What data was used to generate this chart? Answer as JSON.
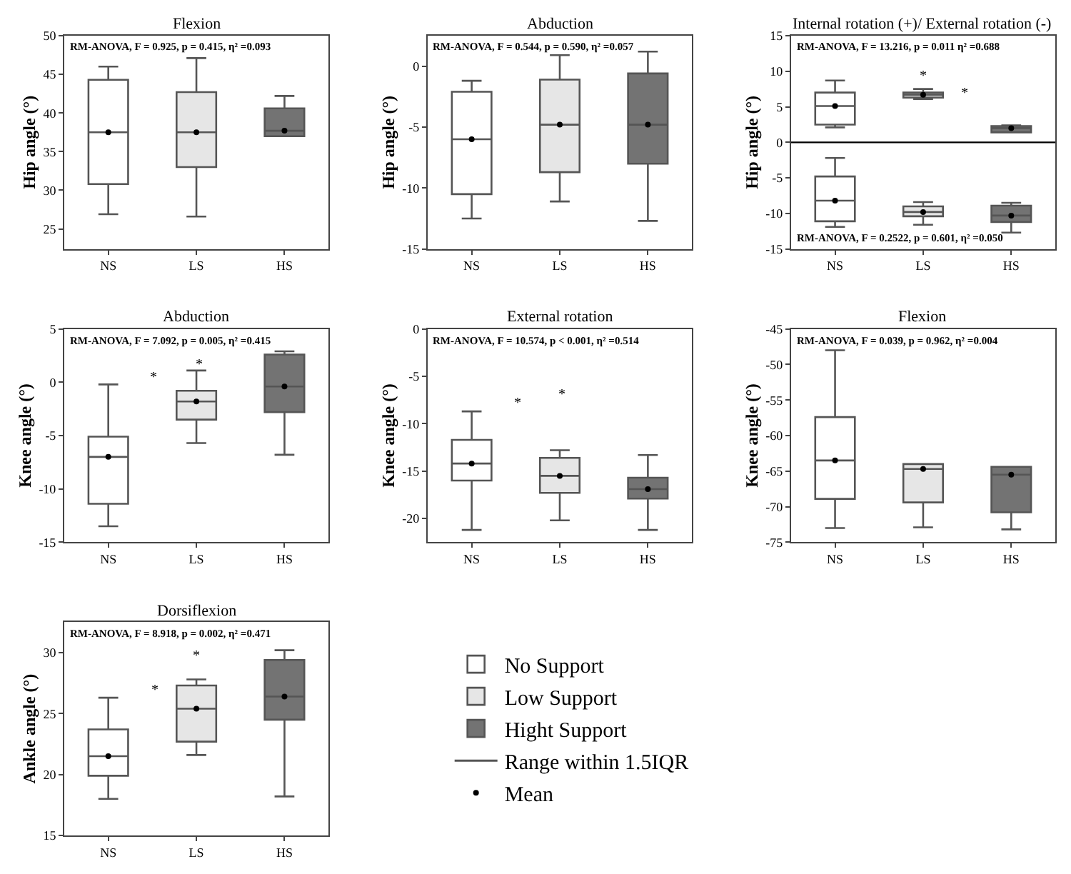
{
  "chart_data": [
    {
      "type": "box",
      "title": "Flexion",
      "ylabel": "Hip angle (°)",
      "categories": [
        "NS",
        "LS",
        "HS"
      ],
      "ylim": [
        22.4,
        50
      ],
      "yticks": [
        25,
        30,
        35,
        40,
        45,
        50
      ],
      "annotations": [
        "RM-ANOVA, F = 0.925, p = 0.415, η² =0.093"
      ],
      "series": [
        {
          "color": "#ffffff",
          "boxes": [
            {
              "low": 26.9,
              "q1": 30.8,
              "median": 37.5,
              "q3": 44.3,
              "high": 46
            },
            null,
            null
          ]
        },
        {
          "color": "#e6e6e6",
          "boxes": [
            null,
            {
              "low": 26.6,
              "q1": 33,
              "median": 37.5,
              "q3": 42.7,
              "high": 47.1
            },
            null
          ]
        },
        {
          "color": "#737373",
          "boxes": [
            null,
            null,
            {
              "low": 37,
              "q1": 37,
              "median": 37.7,
              "q3": 40.6,
              "high": 42.2
            }
          ]
        },
        {
          "type": "scatter",
          "color": "#000000",
          "marker": "circle",
          "x": [
            "NS",
            "LS",
            "HS"
          ],
          "values": [
            37.5,
            37.5,
            37.7
          ]
        }
      ]
    },
    {
      "type": "box",
      "title": "Abduction",
      "ylabel": "Hip angle (°)",
      "categories": [
        "NS",
        "LS",
        "HS"
      ],
      "ylim": [
        -15,
        2.5
      ],
      "yticks": [
        -15,
        -10,
        -5,
        0
      ],
      "annotations": [
        "RM-ANOVA, F = 0.544, p = 0.590, η² =0.057"
      ],
      "series": [
        {
          "color": "#ffffff",
          "boxes": [
            {
              "low": -12.5,
              "q1": -10.5,
              "median": -6,
              "q3": -2.1,
              "high": -1.2
            },
            null,
            null
          ]
        },
        {
          "color": "#e6e6e6",
          "boxes": [
            null,
            {
              "low": -11.1,
              "q1": -8.7,
              "median": -4.8,
              "q3": -1.1,
              "high": 0.9
            },
            null
          ]
        },
        {
          "color": "#737373",
          "boxes": [
            null,
            null,
            {
              "low": -12.7,
              "q1": -8,
              "median": -4.8,
              "q3": -0.6,
              "high": 1.2
            }
          ]
        },
        {
          "type": "scatter",
          "color": "#000000",
          "marker": "circle",
          "x": [
            "NS",
            "LS",
            "HS"
          ],
          "values": [
            -6,
            -4.8,
            -4.8
          ]
        }
      ]
    },
    {
      "type": "box",
      "title": "Internal rotation (+)/ External rotation (-)",
      "ylabel": "Hip angle (°)",
      "categories": [
        "NS",
        "LS",
        "HS"
      ],
      "ylim": [
        -15,
        15
      ],
      "yticks": [
        -15,
        -10,
        -5,
        0,
        5,
        10,
        15
      ],
      "ref_lines": [
        {
          "axis": "y",
          "value": 0,
          "color": "#000000"
        }
      ],
      "annotations": [
        "RM-ANOVA, F = 13.216, p = 0.011 η² =0.688",
        "RM-ANOVA, F = 0.2522, p = 0.601, η² =0.050",
        "*",
        "*"
      ],
      "series": [
        {
          "color": "#ffffff",
          "boxes": [
            {
              "low": 2.1,
              "q1": 2.5,
              "median": 5.1,
              "q3": 7,
              "high": 8.7
            },
            null,
            null
          ]
        },
        {
          "color": "#e6e6e6",
          "boxes": [
            null,
            {
              "low": 6.1,
              "q1": 6.3,
              "median": 6.7,
              "q3": 7,
              "high": 7.5
            },
            null
          ]
        },
        {
          "color": "#737373",
          "boxes": [
            null,
            null,
            {
              "low": 1.4,
              "q1": 1.4,
              "median": 2,
              "q3": 2.3,
              "high": 2.4
            }
          ]
        },
        {
          "color": "#ffffff",
          "boxes": [
            {
              "low": -11.9,
              "q1": -11.1,
              "median": -8.2,
              "q3": -4.8,
              "high": -2.2
            },
            null,
            null
          ]
        },
        {
          "color": "#e6e6e6",
          "boxes": [
            null,
            {
              "low": -11.6,
              "q1": -10.4,
              "median": -9.8,
              "q3": -9,
              "high": -8.4
            },
            null
          ]
        },
        {
          "color": "#737373",
          "boxes": [
            null,
            null,
            {
              "low": -12.7,
              "q1": -11.2,
              "median": -10.3,
              "q3": -8.9,
              "high": -8.5
            }
          ]
        },
        {
          "type": "scatter",
          "color": "#000000",
          "marker": "circle",
          "x": [
            "NS",
            "LS",
            "HS"
          ],
          "values": [
            5.1,
            6.7,
            2
          ]
        },
        {
          "type": "scatter",
          "color": "#000000",
          "marker": "circle",
          "x": [
            "NS",
            "LS",
            "HS"
          ],
          "values": [
            -8.2,
            -9.8,
            -10.3
          ]
        }
      ]
    },
    {
      "type": "box",
      "title": "Abduction",
      "ylabel": "Knee angle (°)",
      "categories": [
        "NS",
        "LS",
        "HS"
      ],
      "ylim": [
        -15,
        5
      ],
      "yticks": [
        -15,
        -10,
        -5,
        0,
        5
      ],
      "annotations": [
        "RM-ANOVA, F = 7.092, p = 0.005, η² =0.415",
        "*",
        "*"
      ],
      "series": [
        {
          "color": "#ffffff",
          "boxes": [
            {
              "low": -13.5,
              "q1": -11.4,
              "median": -7,
              "q3": -5.1,
              "high": -0.2
            },
            null,
            null
          ]
        },
        {
          "color": "#e6e6e6",
          "boxes": [
            null,
            {
              "low": -5.7,
              "q1": -3.5,
              "median": -1.8,
              "q3": -0.8,
              "high": 1.1
            },
            null
          ]
        },
        {
          "color": "#737373",
          "boxes": [
            null,
            null,
            {
              "low": -6.8,
              "q1": -2.8,
              "median": -0.4,
              "q3": 2.6,
              "high": 2.9
            }
          ]
        },
        {
          "type": "scatter",
          "color": "#000000",
          "marker": "circle",
          "x": [
            "NS",
            "LS",
            "HS"
          ],
          "values": [
            -7,
            -1.8,
            -0.4
          ]
        }
      ]
    },
    {
      "type": "box",
      "title": "External rotation",
      "ylabel": "Knee angle (°)",
      "categories": [
        "NS",
        "LS",
        "HS"
      ],
      "ylim": [
        -22.5,
        0
      ],
      "yticks": [
        -20,
        -15,
        -10,
        -5,
        0
      ],
      "annotations": [
        "RM-ANOVA, F = 10.574, p < 0.001, η² =0.514",
        "*",
        "*"
      ],
      "series": [
        {
          "color": "#ffffff",
          "boxes": [
            {
              "low": -21.2,
              "q1": -16,
              "median": -14.2,
              "q3": -11.7,
              "high": -8.7
            },
            null,
            null
          ]
        },
        {
          "color": "#e6e6e6",
          "boxes": [
            null,
            {
              "low": -20.2,
              "q1": -17.3,
              "median": -15.5,
              "q3": -13.6,
              "high": -12.8
            },
            null
          ]
        },
        {
          "color": "#737373",
          "boxes": [
            null,
            null,
            {
              "low": -21.2,
              "q1": -17.9,
              "median": -16.9,
              "q3": -15.7,
              "high": -13.3
            }
          ]
        },
        {
          "type": "scatter",
          "color": "#000000",
          "marker": "circle",
          "x": [
            "NS",
            "LS",
            "HS"
          ],
          "values": [
            -14.2,
            -15.5,
            -16.9
          ]
        }
      ]
    },
    {
      "type": "box",
      "title": "Flexion",
      "ylabel": "Knee angle (°)",
      "categories": [
        "NS",
        "LS",
        "HS"
      ],
      "ylim": [
        -75,
        -45
      ],
      "yticks": [
        -75,
        -70,
        -65,
        -60,
        -55,
        -50,
        -45
      ],
      "annotations": [
        "RM-ANOVA, F = 0.039, p = 0.962, η² =0.004"
      ],
      "series": [
        {
          "color": "#ffffff",
          "boxes": [
            {
              "low": -73,
              "q1": -68.9,
              "median": -63.5,
              "q3": -57.4,
              "high": -48
            },
            null,
            null
          ]
        },
        {
          "color": "#e6e6e6",
          "boxes": [
            null,
            {
              "low": -72.9,
              "q1": -69.4,
              "median": -64.7,
              "q3": -64,
              "high": -64
            },
            null
          ]
        },
        {
          "color": "#737373",
          "boxes": [
            null,
            null,
            {
              "low": -73.2,
              "q1": -70.8,
              "median": -65.5,
              "q3": -64.4,
              "high": -64.4
            }
          ]
        },
        {
          "type": "scatter",
          "color": "#000000",
          "marker": "circle",
          "x": [
            "NS",
            "LS",
            "HS"
          ],
          "values": [
            -63.5,
            -64.7,
            -65.5
          ]
        }
      ]
    },
    {
      "type": "box",
      "title": "Dorsiflexion",
      "ylabel": "Ankle angle (°)",
      "categories": [
        "NS",
        "LS",
        "HS"
      ],
      "ylim": [
        15,
        32.5
      ],
      "yticks": [
        15,
        20,
        25,
        30
      ],
      "legend": "right",
      "annotations": [
        "RM-ANOVA, F = 8.918, p = 0.002, η² =0.471",
        "*",
        "*"
      ],
      "series": [
        {
          "name": "No Support",
          "color": "#ffffff",
          "boxes": [
            {
              "low": 18,
              "q1": 19.9,
              "median": 21.5,
              "q3": 23.7,
              "high": 26.3
            },
            null,
            null
          ]
        },
        {
          "name": "Low Support",
          "color": "#e6e6e6",
          "boxes": [
            null,
            {
              "low": 21.6,
              "q1": 22.7,
              "median": 25.4,
              "q3": 27.3,
              "high": 27.8
            },
            null
          ]
        },
        {
          "name": "Hight Support",
          "color": "#737373",
          "boxes": [
            null,
            null,
            {
              "low": 18.2,
              "q1": 24.5,
              "median": 26.4,
              "q3": 29.4,
              "high": 30.2
            }
          ]
        },
        {
          "type": "line",
          "name": "Range within 1.5IQR",
          "color": "#555555",
          "values": [
            null,
            null,
            null
          ]
        },
        {
          "type": "scatter",
          "name": "Mean",
          "color": "#000000",
          "marker": "circle",
          "x": [
            "NS",
            "LS",
            "HS"
          ],
          "values": [
            21.5,
            25.4,
            26.4
          ]
        }
      ]
    }
  ]
}
